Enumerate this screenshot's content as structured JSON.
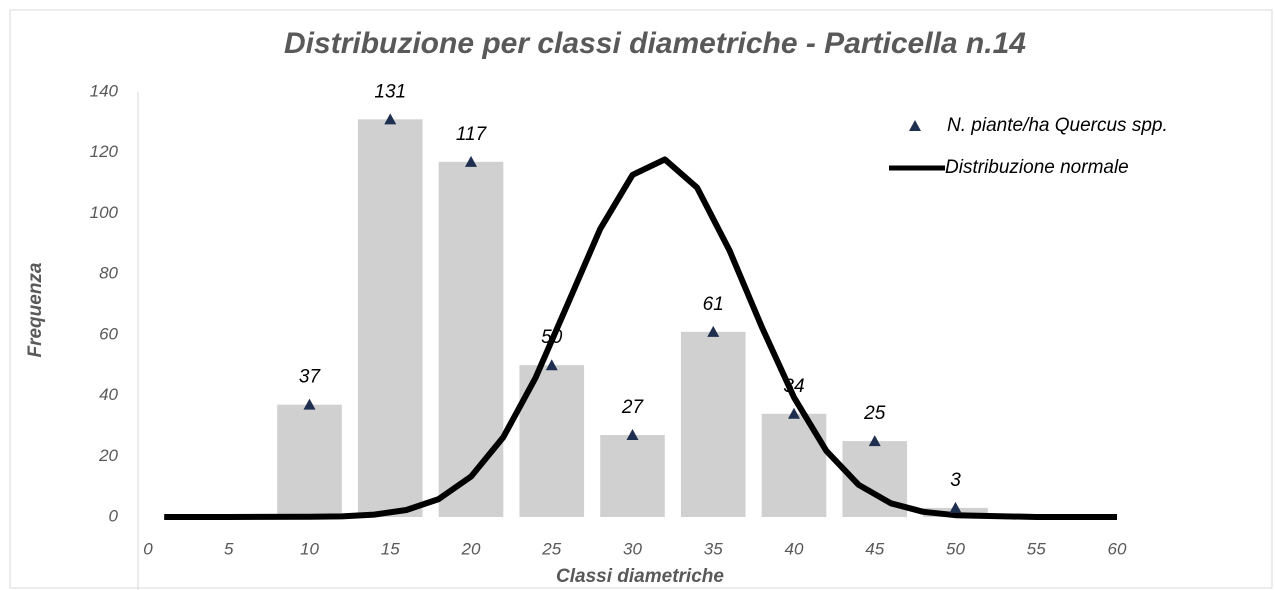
{
  "chart_data": {
    "type": "bar",
    "title": "Distribuzione per classi diametriche - Particella n.14",
    "x_label": "Classi diametriche",
    "y_label": "Frequenza",
    "x": [
      10,
      15,
      20,
      25,
      30,
      35,
      40,
      45,
      50
    ],
    "bar_width": 4,
    "bar_color": "#d0d0d0",
    "series": [
      {
        "name": "N. piante/ha Quercus spp.",
        "color": "#1f2f4f",
        "values": [
          37,
          131,
          117,
          50,
          27,
          61,
          34,
          25,
          3
        ]
      }
    ],
    "curve": {
      "name": "Distribuzione normale",
      "color": "#000000",
      "x": [
        1,
        5,
        10,
        12,
        14,
        16,
        18,
        20,
        22,
        24,
        26,
        28,
        30,
        32,
        34,
        36,
        38,
        40,
        42,
        44,
        46,
        48,
        50,
        55,
        60
      ],
      "values": [
        0,
        0,
        0.1,
        0.2,
        0.8,
        2.3,
        5.9,
        13.3,
        26.3,
        45.9,
        70.3,
        94.9,
        112.7,
        117.8,
        108.5,
        87.9,
        62.7,
        39.4,
        21.8,
        10.6,
        4.5,
        1.7,
        0.6,
        0,
        0
      ]
    },
    "xlim": [
      0,
      60
    ],
    "xticks": [
      0,
      5,
      10,
      15,
      20,
      25,
      30,
      35,
      40,
      45,
      50,
      55,
      60
    ],
    "ylim": [
      0,
      140
    ],
    "yticks": [
      0,
      20,
      40,
      60,
      80,
      100,
      120,
      140
    ],
    "legend": "top-right"
  }
}
